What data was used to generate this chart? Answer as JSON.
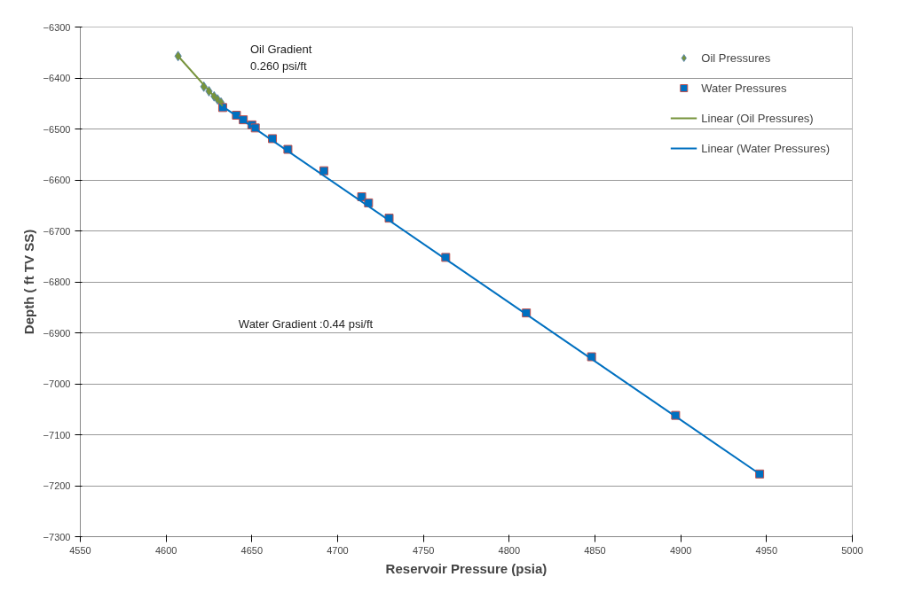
{
  "chart_data": {
    "type": "scatter",
    "xlabel": "Reservoir Pressure (psia)",
    "ylabel": "Depth ( ft TV SS)",
    "xlim": [
      4550,
      5000
    ],
    "xticks": [
      4550,
      4600,
      4650,
      4700,
      4750,
      4800,
      4850,
      4900,
      4950,
      5000
    ],
    "ylim": [
      -7300,
      -6300
    ],
    "yticks": [
      -7300,
      -7200,
      -7100,
      -7000,
      -6900,
      -6800,
      -6700,
      -6600,
      -6500,
      -6400,
      -6300
    ],
    "grid": "y",
    "legend": "top right",
    "series": [
      {
        "name": "Oil Pressures",
        "marker": "diamond",
        "color": "#77933c",
        "x": [
          4607,
          4622,
          4625,
          4628,
          4630,
          4632
        ],
        "values": [
          -6357,
          -6417,
          -6426,
          -6436,
          -6442,
          -6448
        ]
      },
      {
        "name": "Water Pressures",
        "marker": "square",
        "color": "#0070c0",
        "x": [
          4633,
          4641,
          4645,
          4650,
          4652,
          4662,
          4671,
          4692,
          4714,
          4718,
          4730,
          4763,
          4810,
          4848,
          4897,
          4946
        ],
        "values": [
          -6458,
          -6473,
          -6482,
          -6492,
          -6498,
          -6519,
          -6540,
          -6582,
          -6633,
          -6645,
          -6675,
          -6752,
          -6861,
          -6947,
          -7062,
          -7177
        ]
      },
      {
        "name": "Linear (Oil Pressures)",
        "type": "line",
        "color": "#77933c",
        "x": [
          4607,
          4633
        ],
        "values": [
          -6357,
          -6455
        ]
      },
      {
        "name": "Linear (Water Pressures)",
        "type": "line",
        "color": "#0070c0",
        "x": [
          4633,
          4946
        ],
        "values": [
          -6456,
          -7177
        ]
      }
    ],
    "annotations": [
      "Oil Gradient\n0.260 psi/ft",
      "Water Gradient :0.44 psi/ft"
    ]
  }
}
